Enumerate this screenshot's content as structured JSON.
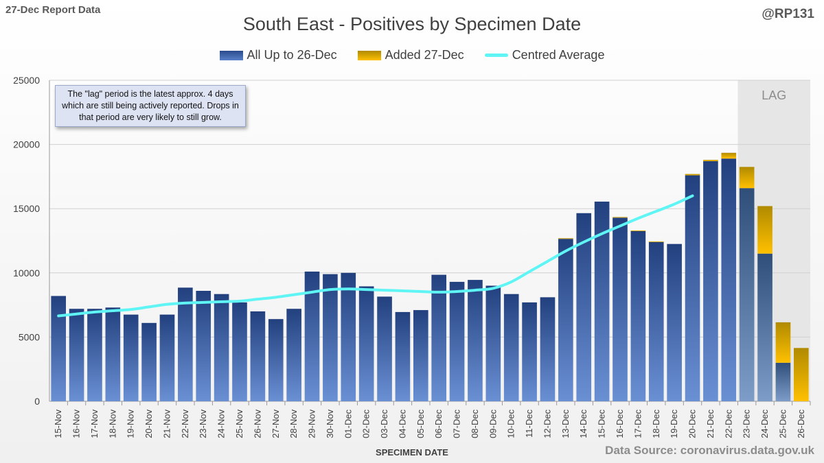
{
  "header": {
    "report_label": "27-Dec Report Data",
    "handle": "@RP131",
    "source": "Data Source: coronavirus.data.gov.uk",
    "note": "The \"lag\" period is the latest approx. 4 days which are still being actively reported. Drops in that period are very likely to still grow."
  },
  "colors": {
    "base_series": "#2f4f93",
    "added_series": "#ffc000",
    "average_line": "#5ff5f5",
    "lag_shade": "#e6e6e6"
  },
  "chart_data": {
    "type": "bar",
    "title": "South East - Positives by Specimen Date",
    "xlabel": "SPECIMEN DATE",
    "ylabel": "",
    "ylim": [
      0,
      25000
    ],
    "yticks": [
      0,
      5000,
      10000,
      15000,
      20000,
      25000
    ],
    "grid": true,
    "legend_position": "top",
    "stacked": true,
    "categories": [
      "15-Nov",
      "16-Nov",
      "17-Nov",
      "18-Nov",
      "19-Nov",
      "20-Nov",
      "21-Nov",
      "22-Nov",
      "23-Nov",
      "24-Nov",
      "25-Nov",
      "26-Nov",
      "27-Nov",
      "28-Nov",
      "29-Nov",
      "30-Nov",
      "01-Dec",
      "02-Dec",
      "03-Dec",
      "04-Dec",
      "05-Dec",
      "06-Dec",
      "07-Dec",
      "08-Dec",
      "09-Dec",
      "10-Dec",
      "11-Dec",
      "12-Dec",
      "13-Dec",
      "14-Dec",
      "15-Dec",
      "16-Dec",
      "17-Dec",
      "18-Dec",
      "19-Dec",
      "20-Dec",
      "21-Dec",
      "22-Dec",
      "23-Dec",
      "24-Dec",
      "25-Dec",
      "26-Dec"
    ],
    "series": [
      {
        "name": "All Up to 26-Dec",
        "values": [
          8200,
          7200,
          7200,
          7300,
          6750,
          6100,
          6750,
          8850,
          8600,
          8350,
          7700,
          7000,
          6400,
          7200,
          10100,
          9900,
          10000,
          8950,
          8150,
          6950,
          7100,
          9850,
          9300,
          9450,
          9000,
          8350,
          7700,
          8100,
          12650,
          14650,
          15550,
          14300,
          13250,
          12400,
          12250,
          17600,
          18700,
          18900,
          16600,
          11500,
          3000,
          0
        ]
      },
      {
        "name": "Added 27-Dec",
        "values": [
          0,
          0,
          0,
          0,
          0,
          0,
          0,
          0,
          0,
          0,
          0,
          0,
          0,
          0,
          0,
          0,
          0,
          0,
          0,
          0,
          0,
          0,
          0,
          0,
          0,
          0,
          0,
          0,
          50,
          0,
          0,
          50,
          50,
          50,
          0,
          100,
          100,
          450,
          1650,
          3700,
          3150,
          4150
        ]
      },
      {
        "name": "Centred Average",
        "type": "line",
        "values": [
          6650,
          6800,
          6950,
          7050,
          7150,
          7350,
          7550,
          7650,
          7700,
          7750,
          7800,
          7950,
          8100,
          8300,
          8500,
          8700,
          8750,
          8700,
          8650,
          8600,
          8550,
          8500,
          8550,
          8650,
          8800,
          9300,
          10100,
          10900,
          11700,
          12400,
          13050,
          13650,
          14250,
          14800,
          15350,
          16000,
          null,
          null,
          null,
          null,
          null,
          null
        ]
      }
    ],
    "annotations": [
      "LAG"
    ],
    "lag_categories": [
      "23-Dec",
      "24-Dec",
      "25-Dec",
      "26-Dec"
    ]
  }
}
